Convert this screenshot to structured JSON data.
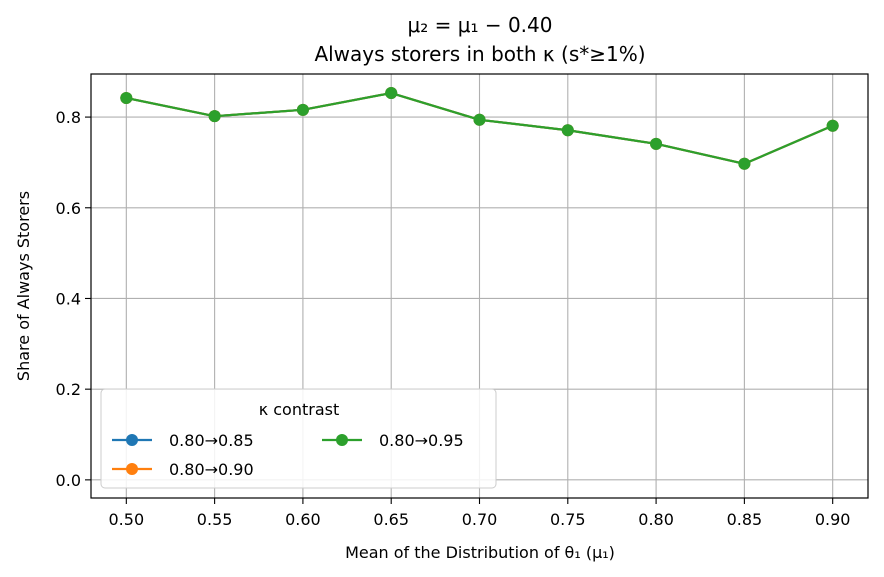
{
  "chart_data": {
    "type": "line",
    "title": "μ₂ = μ₁ − 0.40",
    "subtitle": "Always storers in both κ (s*≥1%)",
    "xlabel": "Mean of the Distribution of θ₁ (μ₁)",
    "ylabel": "Share of Always Storers",
    "xlim": [
      0.48,
      0.92
    ],
    "ylim": [
      -0.04,
      0.895
    ],
    "x": [
      0.5,
      0.55,
      0.6,
      0.65,
      0.7,
      0.75,
      0.8,
      0.85,
      0.9
    ],
    "x_tick_labels": [
      "0.50",
      "0.55",
      "0.60",
      "0.65",
      "0.70",
      "0.75",
      "0.80",
      "0.85",
      "0.90"
    ],
    "y_ticks": [
      0.0,
      0.2,
      0.4,
      0.6,
      0.8
    ],
    "y_tick_labels": [
      "0.0",
      "0.2",
      "0.4",
      "0.6",
      "0.8"
    ],
    "grid": true,
    "legend": {
      "title": "κ contrast",
      "placement": "lower-left",
      "columns": 2
    },
    "series": [
      {
        "name": "0.80→0.85",
        "color": "#1f77b4",
        "values": [
          0.842,
          0.802,
          0.816,
          0.853,
          0.794,
          0.771,
          0.741,
          0.697,
          0.781
        ]
      },
      {
        "name": "0.80→0.90",
        "color": "#ff7f0e",
        "values": [
          0.842,
          0.802,
          0.816,
          0.853,
          0.794,
          0.771,
          0.741,
          0.697,
          0.781
        ]
      },
      {
        "name": "0.80→0.95",
        "color": "#2ca02c",
        "values": [
          0.842,
          0.802,
          0.816,
          0.853,
          0.794,
          0.771,
          0.741,
          0.697,
          0.781
        ]
      }
    ]
  }
}
